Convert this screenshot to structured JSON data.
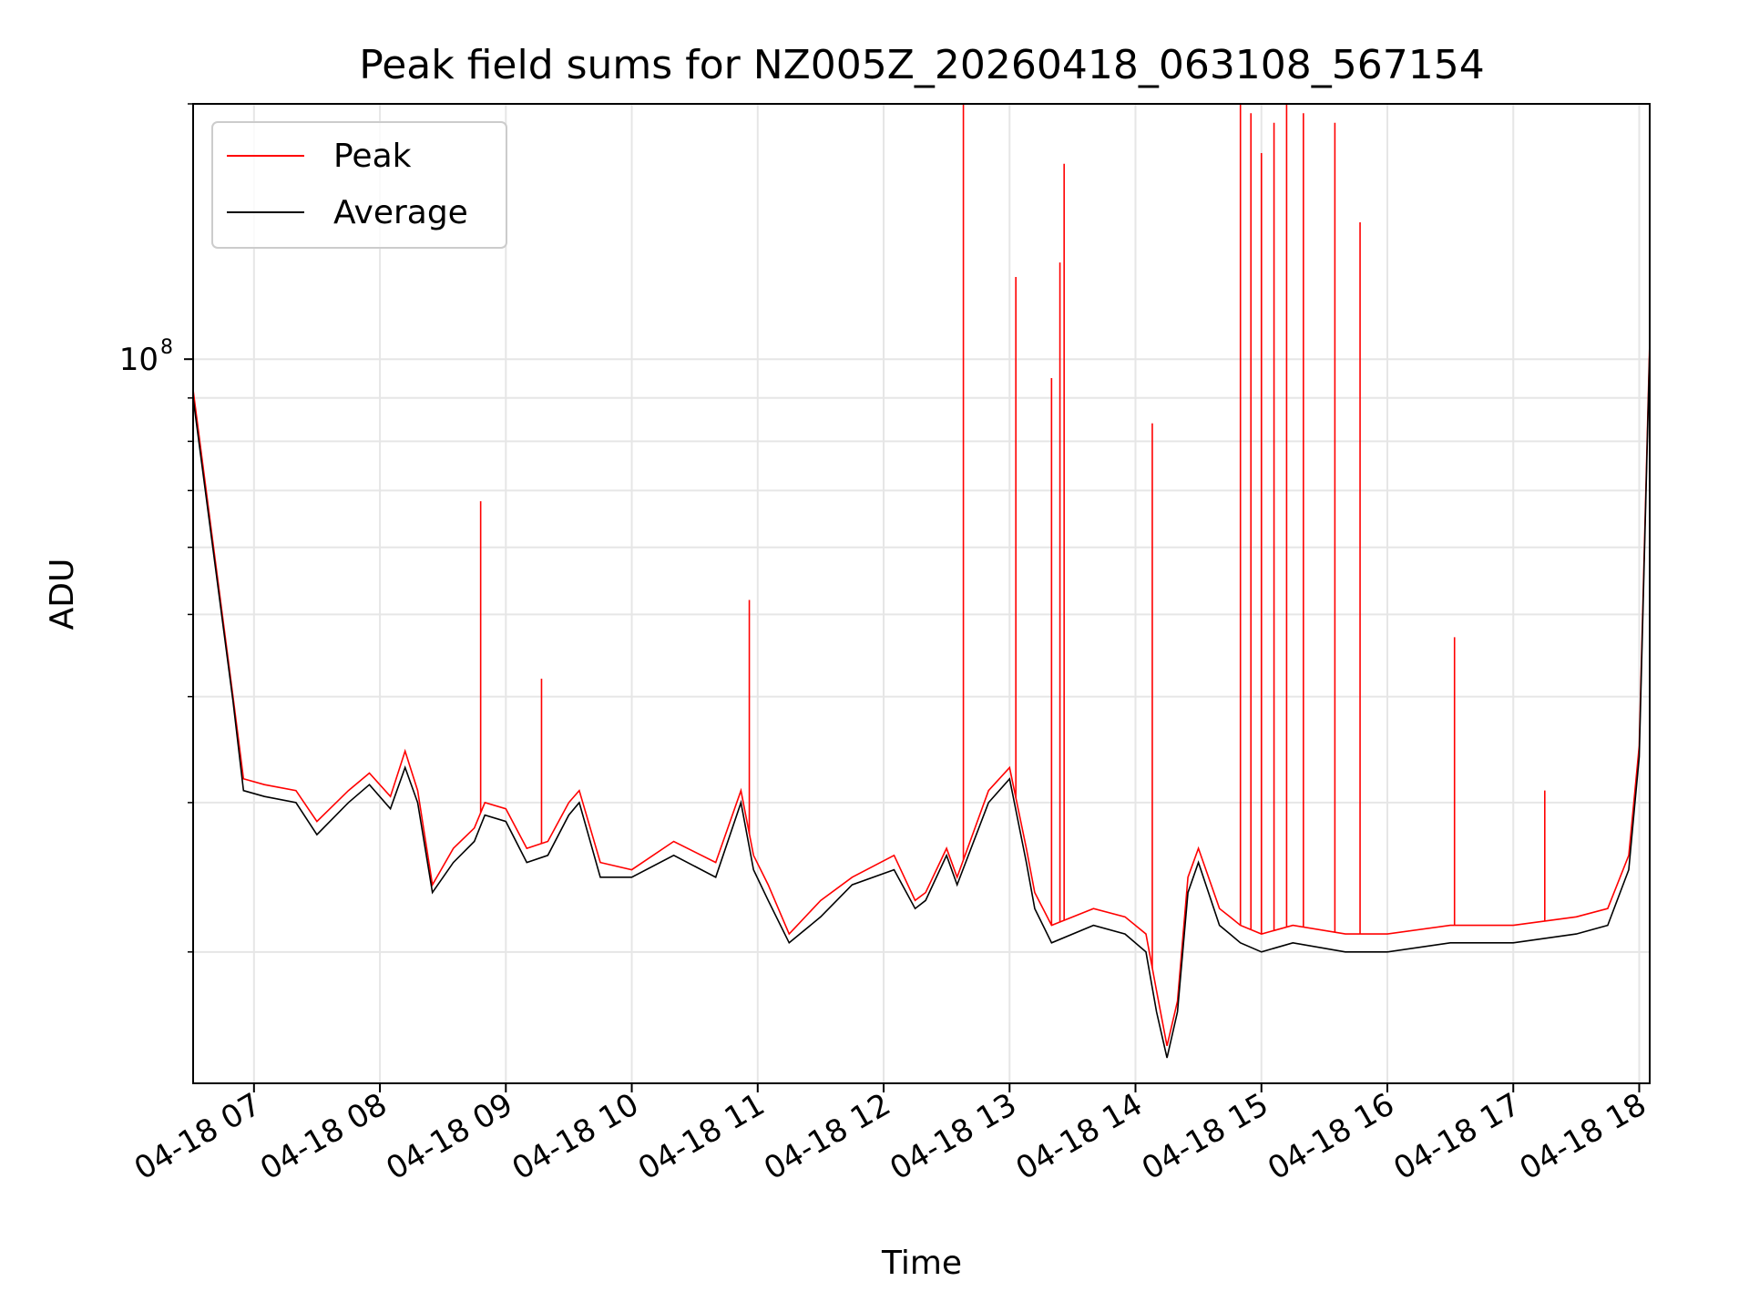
{
  "chart_data": {
    "type": "line",
    "title": "Peak field sums for NZ005Z_20260418_063108_567154",
    "xlabel": "Time",
    "ylabel": "ADU",
    "y_scale": "log",
    "ylim": [
      14000000,
      200000000
    ],
    "xlim": [
      "2026-04-18 06:31",
      "2026-04-18 18:05"
    ],
    "grid": true,
    "legend_position": "top-left",
    "x_ticks": [
      "2026-04-18 07:00",
      "2026-04-18 08:00",
      "2026-04-18 09:00",
      "2026-04-18 10:00",
      "2026-04-18 11:00",
      "2026-04-18 12:00",
      "2026-04-18 13:00",
      "2026-04-18 14:00",
      "2026-04-18 15:00",
      "2026-04-18 16:00",
      "2026-04-18 17:00",
      "2026-04-18 18:00"
    ],
    "x_tick_labels": [
      "04-18 07",
      "04-18 08",
      "04-18 09",
      "04-18 10",
      "04-18 11",
      "04-18 12",
      "04-18 13",
      "04-18 14",
      "04-18 15",
      "04-18 16",
      "04-18 17",
      "04-18 18"
    ],
    "y_ticks": [
      100000000
    ],
    "y_tick_labels": [
      {
        "base": "10",
        "exp": "8"
      }
    ],
    "series": [
      {
        "name": "Peak",
        "color": "#ff0000",
        "x": [
          "2026-04-18 06:31",
          "2026-04-18 06:40",
          "2026-04-18 06:50",
          "2026-04-18 06:55",
          "2026-04-18 07:05",
          "2026-04-18 07:20",
          "2026-04-18 07:30",
          "2026-04-18 07:45",
          "2026-04-18 07:55",
          "2026-04-18 08:05",
          "2026-04-18 08:12",
          "2026-04-18 08:18",
          "2026-04-18 08:25",
          "2026-04-18 08:35",
          "2026-04-18 08:45",
          "2026-04-18 08:50",
          "2026-04-18 09:00",
          "2026-04-18 09:10",
          "2026-04-18 09:20",
          "2026-04-18 09:30",
          "2026-04-18 09:35",
          "2026-04-18 09:45",
          "2026-04-18 10:00",
          "2026-04-18 10:20",
          "2026-04-18 10:40",
          "2026-04-18 10:52",
          "2026-04-18 10:58",
          "2026-04-18 11:05",
          "2026-04-18 11:15",
          "2026-04-18 11:30",
          "2026-04-18 11:45",
          "2026-04-18 12:05",
          "2026-04-18 12:15",
          "2026-04-18 12:20",
          "2026-04-18 12:30",
          "2026-04-18 12:35",
          "2026-04-18 12:50",
          "2026-04-18 13:00",
          "2026-04-18 13:08",
          "2026-04-18 13:12",
          "2026-04-18 13:20",
          "2026-04-18 13:40",
          "2026-04-18 13:55",
          "2026-04-18 14:05",
          "2026-04-18 14:10",
          "2026-04-18 14:15",
          "2026-04-18 14:20",
          "2026-04-18 14:25",
          "2026-04-18 14:30",
          "2026-04-18 14:40",
          "2026-04-18 14:45",
          "2026-04-18 14:50",
          "2026-04-18 15:00",
          "2026-04-18 15:15",
          "2026-04-18 15:40",
          "2026-04-18 16:00",
          "2026-04-18 16:30",
          "2026-04-18 17:00",
          "2026-04-18 17:30",
          "2026-04-18 17:45",
          "2026-04-18 17:55",
          "2026-04-18 18:00",
          "2026-04-18 18:05"
        ],
        "y": [
          92000000,
          62000000,
          40000000,
          32000000,
          31500000,
          31000000,
          28500000,
          31000000,
          32500000,
          30500000,
          34500000,
          31000000,
          24000000,
          26500000,
          28000000,
          30000000,
          29500000,
          26500000,
          27000000,
          30000000,
          31000000,
          25500000,
          25000000,
          27000000,
          25500000,
          31000000,
          26000000,
          24000000,
          21000000,
          23000000,
          24500000,
          26000000,
          23000000,
          23500000,
          26500000,
          24500000,
          31000000,
          33000000,
          26500000,
          23500000,
          21500000,
          22500000,
          22000000,
          21000000,
          18000000,
          15500000,
          17500000,
          24500000,
          26500000,
          22500000,
          22000000,
          21500000,
          21000000,
          21500000,
          21000000,
          21000000,
          21500000,
          21500000,
          22000000,
          22500000,
          26000000,
          35000000,
          105000000
        ],
        "spikes": [
          {
            "x": "2026-04-18 08:48",
            "y": 68000000
          },
          {
            "x": "2026-04-18 09:17",
            "y": 42000000
          },
          {
            "x": "2026-04-18 10:56",
            "y": 52000000
          },
          {
            "x": "2026-04-18 12:38",
            "y": 210000000
          },
          {
            "x": "2026-04-18 13:03",
            "y": 125000000
          },
          {
            "x": "2026-04-18 13:20",
            "y": 95000000
          },
          {
            "x": "2026-04-18 13:24",
            "y": 130000000
          },
          {
            "x": "2026-04-18 13:26",
            "y": 170000000
          },
          {
            "x": "2026-04-18 14:08",
            "y": 84000000
          },
          {
            "x": "2026-04-18 14:50",
            "y": 200000000
          },
          {
            "x": "2026-04-18 14:55",
            "y": 195000000
          },
          {
            "x": "2026-04-18 15:00",
            "y": 175000000
          },
          {
            "x": "2026-04-18 15:06",
            "y": 190000000
          },
          {
            "x": "2026-04-18 15:12",
            "y": 210000000
          },
          {
            "x": "2026-04-18 15:20",
            "y": 195000000
          },
          {
            "x": "2026-04-18 15:35",
            "y": 190000000
          },
          {
            "x": "2026-04-18 15:47",
            "y": 145000000
          },
          {
            "x": "2026-04-18 16:32",
            "y": 47000000
          },
          {
            "x": "2026-04-18 17:15",
            "y": 31000000
          }
        ]
      },
      {
        "name": "Average",
        "color": "#000000",
        "x": [
          "2026-04-18 06:31",
          "2026-04-18 06:40",
          "2026-04-18 06:50",
          "2026-04-18 06:55",
          "2026-04-18 07:05",
          "2026-04-18 07:20",
          "2026-04-18 07:30",
          "2026-04-18 07:45",
          "2026-04-18 07:55",
          "2026-04-18 08:05",
          "2026-04-18 08:12",
          "2026-04-18 08:18",
          "2026-04-18 08:25",
          "2026-04-18 08:35",
          "2026-04-18 08:45",
          "2026-04-18 08:50",
          "2026-04-18 09:00",
          "2026-04-18 09:10",
          "2026-04-18 09:20",
          "2026-04-18 09:30",
          "2026-04-18 09:35",
          "2026-04-18 09:45",
          "2026-04-18 10:00",
          "2026-04-18 10:20",
          "2026-04-18 10:40",
          "2026-04-18 10:52",
          "2026-04-18 10:58",
          "2026-04-18 11:05",
          "2026-04-18 11:15",
          "2026-04-18 11:30",
          "2026-04-18 11:45",
          "2026-04-18 12:05",
          "2026-04-18 12:15",
          "2026-04-18 12:20",
          "2026-04-18 12:30",
          "2026-04-18 12:35",
          "2026-04-18 12:50",
          "2026-04-18 13:00",
          "2026-04-18 13:08",
          "2026-04-18 13:12",
          "2026-04-18 13:20",
          "2026-04-18 13:40",
          "2026-04-18 13:55",
          "2026-04-18 14:05",
          "2026-04-18 14:10",
          "2026-04-18 14:15",
          "2026-04-18 14:20",
          "2026-04-18 14:25",
          "2026-04-18 14:30",
          "2026-04-18 14:40",
          "2026-04-18 14:45",
          "2026-04-18 14:50",
          "2026-04-18 15:00",
          "2026-04-18 15:15",
          "2026-04-18 15:40",
          "2026-04-18 16:00",
          "2026-04-18 16:30",
          "2026-04-18 17:00",
          "2026-04-18 17:30",
          "2026-04-18 17:45",
          "2026-04-18 17:55",
          "2026-04-18 18:00",
          "2026-04-18 18:05"
        ],
        "y": [
          90000000,
          61000000,
          39500000,
          31000000,
          30500000,
          30000000,
          27500000,
          30000000,
          31500000,
          29500000,
          33000000,
          30000000,
          23500000,
          25500000,
          27000000,
          29000000,
          28500000,
          25500000,
          26000000,
          29000000,
          30000000,
          24500000,
          24500000,
          26000000,
          24500000,
          30000000,
          25000000,
          23000000,
          20500000,
          22000000,
          24000000,
          25000000,
          22500000,
          23000000,
          26000000,
          24000000,
          30000000,
          32000000,
          25500000,
          22500000,
          20500000,
          21500000,
          21000000,
          20000000,
          17000000,
          15000000,
          17000000,
          23500000,
          25500000,
          21500000,
          21000000,
          20500000,
          20000000,
          20500000,
          20000000,
          20000000,
          20500000,
          20500000,
          21000000,
          21500000,
          25000000,
          34000000,
          103000000
        ]
      }
    ]
  }
}
